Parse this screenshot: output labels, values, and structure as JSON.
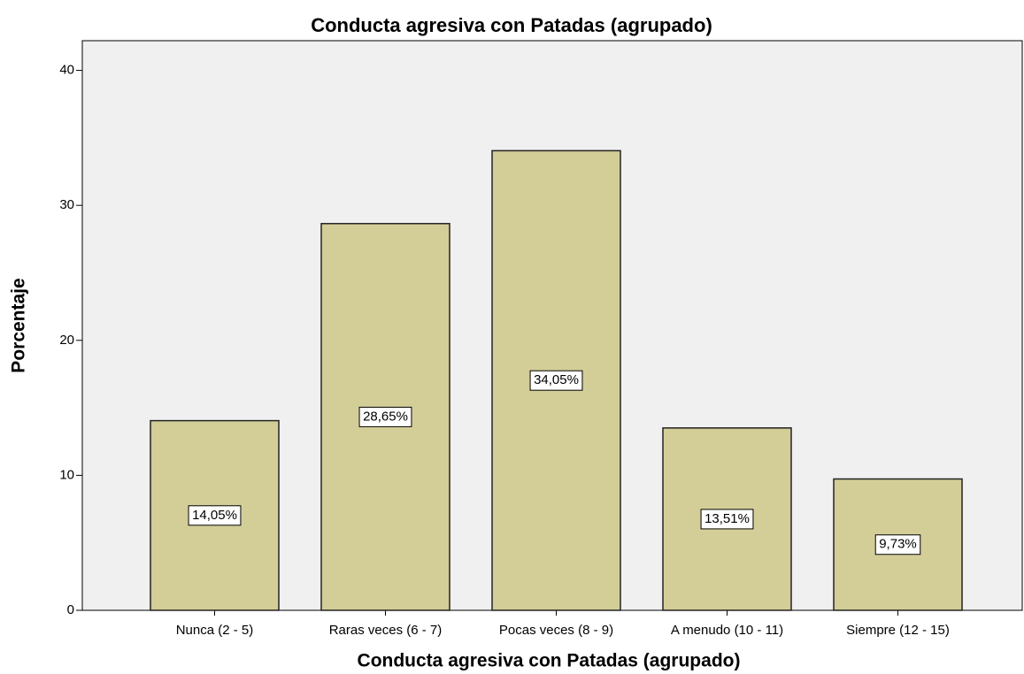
{
  "chart_data": {
    "type": "bar",
    "title": "Conducta agresiva con Patadas (agrupado)",
    "x_label": "Conducta agresiva con Patadas (agrupado)",
    "y_label": "Porcentaje",
    "categories": [
      "Nunca (2 - 5)",
      "Raras veces (6 - 7)",
      "Pocas veces (8 - 9)",
      "A menudo (10 - 11)",
      "Siempre (12 - 15)"
    ],
    "values": [
      14.05,
      28.65,
      34.05,
      13.51,
      9.73
    ],
    "value_labels": [
      "14,05%",
      "28,65%",
      "34,05%",
      "13,51%",
      "9,73%"
    ],
    "color": "#d3ce97",
    "ylim": [
      0,
      42.2
    ],
    "yticks": [
      0,
      10,
      20,
      30,
      40
    ],
    "grid": false
  }
}
